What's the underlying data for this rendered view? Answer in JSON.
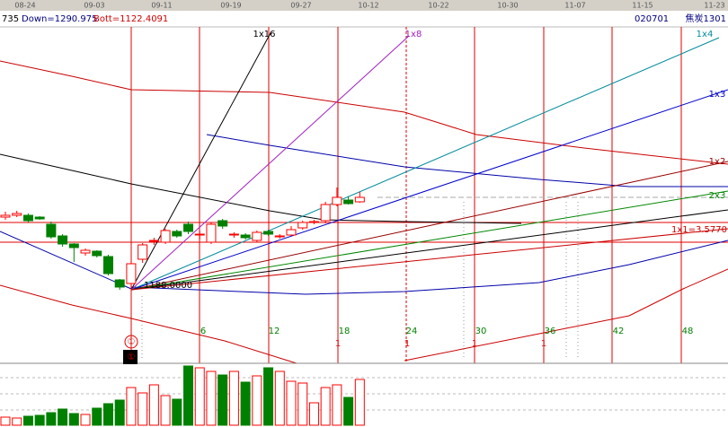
{
  "header": {
    "dates": [
      "08-24",
      "09-03",
      "09-11",
      "09-19",
      "09-27",
      "10-12",
      "10-22",
      "10-30",
      "11-07",
      "11-15",
      "11-23"
    ],
    "code": "735",
    "down": "Down=1290.975",
    "bott": "Bott=1122.4091",
    "symbol_code": "020701",
    "symbol_name": "焦炭1301"
  },
  "fan_labels": [
    "1x16",
    "1x8",
    "1x4",
    "1x3",
    "1x2",
    "2x3",
    "1x1=3.5770"
  ],
  "origin_label": "1188.0000",
  "counts": [
    "6",
    "12",
    "18",
    "24",
    "30",
    "36",
    "42",
    "48"
  ],
  "cycle_marks": [
    "1",
    "1",
    "1",
    "1"
  ],
  "circle_marks": [
    "①",
    "①"
  ],
  "chart_data": {
    "type": "candlestick",
    "candles": [
      {
        "open": 1228.5,
        "high": 1231.5,
        "low": 1227,
        "close": 1229.5
      },
      {
        "open": 1229.5,
        "high": 1232,
        "low": 1228.5,
        "close": 1230.5
      },
      {
        "open": 1229.5,
        "high": 1230.5,
        "low": 1225.5,
        "close": 1226.5
      },
      {
        "open": 1228.5,
        "high": 1229,
        "low": 1227,
        "close": 1227.5
      },
      {
        "open": 1224.5,
        "high": 1226,
        "low": 1216.5,
        "close": 1217.5
      },
      {
        "open": 1218,
        "high": 1219,
        "low": 1212,
        "close": 1213.5
      },
      {
        "open": 1213.5,
        "high": 1214,
        "low": 1203.5,
        "close": 1211.5
      },
      {
        "open": 1208.5,
        "high": 1211,
        "low": 1207,
        "close": 1210
      },
      {
        "open": 1209.5,
        "high": 1210,
        "low": 1206,
        "close": 1207
      },
      {
        "open": 1206.5,
        "high": 1207.5,
        "low": 1196,
        "close": 1197
      },
      {
        "open": 1193.5,
        "high": 1194,
        "low": 1188,
        "close": 1189.5
      },
      {
        "open": 1191.5,
        "high": 1204,
        "low": 1188,
        "close": 1202.5
      },
      {
        "open": 1205,
        "high": 1214,
        "low": 1203,
        "close": 1213
      },
      {
        "open": 1215,
        "high": 1217,
        "low": 1213,
        "close": 1215.5
      },
      {
        "open": 1214.5,
        "high": 1222,
        "low": 1213.5,
        "close": 1221
      },
      {
        "open": 1220.5,
        "high": 1221.5,
        "low": 1217,
        "close": 1218
      },
      {
        "open": 1224.5,
        "high": 1226,
        "low": 1219,
        "close": 1220.5
      },
      {
        "open": 1218.5,
        "high": 1221,
        "low": 1216,
        "close": 1219
      },
      {
        "open": 1214.5,
        "high": 1225.5,
        "low": 1213.5,
        "close": 1224.5
      },
      {
        "open": 1226.5,
        "high": 1227.5,
        "low": 1222,
        "close": 1223.5
      },
      {
        "open": 1218.5,
        "high": 1220,
        "low": 1217,
        "close": 1219
      },
      {
        "open": 1218.5,
        "high": 1219.5,
        "low": 1216,
        "close": 1217
      },
      {
        "open": 1215.5,
        "high": 1221,
        "low": 1214.5,
        "close": 1220
      },
      {
        "open": 1220.5,
        "high": 1221.5,
        "low": 1218,
        "close": 1219
      },
      {
        "open": 1217.5,
        "high": 1219,
        "low": 1216.5,
        "close": 1218
      },
      {
        "open": 1218.5,
        "high": 1223.5,
        "low": 1218,
        "close": 1221.5
      },
      {
        "open": 1222.5,
        "high": 1226.5,
        "low": 1221.5,
        "close": 1225.5
      },
      {
        "open": 1225.5,
        "high": 1227,
        "low": 1224.5,
        "close": 1226
      },
      {
        "open": 1226.5,
        "high": 1237,
        "low": 1225,
        "close": 1235.5
      },
      {
        "open": 1235.5,
        "high": 1245,
        "low": 1234.5,
        "close": 1239.5
      },
      {
        "open": 1238,
        "high": 1240,
        "low": 1235.5,
        "close": 1236
      },
      {
        "open": 1237,
        "high": 1242.5,
        "low": 1236.5,
        "close": 1239.5
      }
    ],
    "ylim": [
      1147,
      1334.5
    ],
    "volume": [
      9,
      8,
      10,
      11,
      14,
      18,
      13,
      12,
      19,
      24,
      28,
      42,
      36,
      45,
      33,
      29,
      66,
      64,
      60,
      56,
      60,
      48,
      55,
      64,
      60,
      49,
      47,
      25,
      42,
      45,
      31,
      51
    ],
    "volume_lim": [
      0,
      70
    ],
    "up_color": "#ff0000",
    "down_color": "#008000"
  }
}
